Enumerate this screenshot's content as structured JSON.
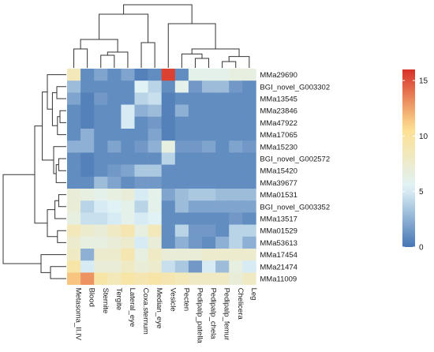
{
  "chart_data": {
    "type": "heatmap",
    "rows": [
      "MMa29690",
      "BGI_novel_G003302",
      "MMa13545",
      "MMa23846",
      "MMa47922",
      "MMa17065",
      "MMa15230",
      "BGI_novel_G002572",
      "MMa15420",
      "MMa39677",
      "MMa01531",
      "BGI_novel_G003352",
      "MMa13517",
      "MMa01529",
      "MMa53613",
      "MMa17454",
      "MMa21474",
      "MMa11009"
    ],
    "columns": [
      "Metasoma_II.IV",
      "Blood",
      "Sternite",
      "Tergite",
      "Lateral_eye",
      "Coxa.sternum",
      "Median_eye",
      "Vesicle",
      "Pecten",
      "Pedipalp_patella",
      "Pedipalp_chela",
      "Pedipalp_femur",
      "Chelicera",
      "Leg"
    ],
    "values": [
      [
        8.5,
        1.0,
        2.0,
        1.0,
        2.0,
        0.5,
        1.0,
        15.5,
        1.0,
        6.0,
        6.0,
        6.0,
        6.5,
        6.5
      ],
      [
        3.0,
        1.0,
        1.0,
        1.0,
        1.0,
        5.5,
        4.0,
        1.0,
        6.0,
        1.5,
        3.0,
        3.0,
        1.5,
        1.0
      ],
      [
        2.0,
        0.5,
        1.5,
        1.0,
        1.0,
        4.0,
        4.5,
        0.5,
        1.0,
        1.0,
        1.0,
        1.0,
        1.0,
        1.0
      ],
      [
        1.0,
        0.5,
        1.0,
        1.0,
        5.0,
        2.5,
        3.0,
        0.5,
        2.5,
        1.0,
        1.0,
        1.0,
        1.0,
        1.0
      ],
      [
        1.0,
        0.5,
        1.0,
        1.0,
        5.0,
        1.0,
        1.5,
        0.5,
        1.0,
        1.0,
        1.0,
        1.0,
        1.0,
        1.0
      ],
      [
        1.0,
        2.5,
        1.0,
        1.0,
        1.0,
        1.0,
        2.0,
        0.5,
        1.0,
        1.0,
        1.0,
        1.0,
        1.0,
        1.0
      ],
      [
        2.5,
        2.5,
        1.0,
        2.0,
        1.0,
        1.5,
        2.5,
        6.5,
        1.5,
        1.5,
        2.0,
        1.0,
        2.0,
        1.5
      ],
      [
        1.0,
        0.5,
        1.0,
        1.0,
        1.0,
        1.0,
        1.0,
        4.0,
        1.0,
        1.0,
        1.0,
        1.0,
        1.0,
        1.0
      ],
      [
        1.0,
        0.5,
        1.0,
        1.5,
        2.0,
        3.5,
        3.5,
        1.0,
        1.0,
        1.0,
        1.0,
        1.0,
        1.0,
        1.0
      ],
      [
        1.0,
        1.0,
        3.0,
        2.0,
        1.0,
        1.5,
        1.5,
        1.0,
        1.0,
        1.0,
        1.0,
        1.0,
        1.0,
        1.0
      ],
      [
        7.0,
        6.5,
        6.0,
        6.5,
        7.0,
        5.0,
        6.0,
        2.0,
        3.0,
        3.5,
        3.5,
        3.0,
        3.0,
        3.0
      ],
      [
        7.0,
        4.0,
        5.0,
        5.5,
        6.0,
        4.0,
        6.0,
        1.0,
        3.0,
        2.0,
        2.0,
        2.0,
        2.0,
        2.0
      ],
      [
        6.5,
        4.5,
        4.5,
        5.0,
        6.0,
        5.0,
        5.5,
        1.0,
        1.0,
        1.0,
        1.0,
        1.0,
        1.5,
        1.0
      ],
      [
        8.5,
        7.5,
        7.0,
        8.0,
        9.0,
        6.5,
        8.5,
        1.0,
        4.0,
        1.5,
        1.5,
        1.0,
        4.0,
        4.0
      ],
      [
        7.5,
        6.5,
        6.5,
        7.0,
        7.5,
        5.0,
        7.0,
        1.0,
        2.5,
        1.5,
        1.0,
        2.5,
        4.0,
        2.5
      ],
      [
        8.0,
        2.5,
        7.5,
        7.5,
        9.0,
        6.5,
        8.0,
        7.0,
        7.0,
        7.0,
        7.5,
        7.5,
        7.5,
        7.5
      ],
      [
        9.5,
        5.0,
        7.0,
        7.0,
        8.0,
        7.0,
        7.5,
        4.5,
        3.5,
        1.5,
        5.0,
        3.0,
        6.5,
        5.0
      ],
      [
        11.5,
        13.0,
        9.5,
        8.5,
        9.5,
        9.0,
        9.5,
        9.0,
        8.5,
        8.0,
        8.0,
        8.0,
        7.0,
        8.0
      ]
    ],
    "colorbar": {
      "min": 0,
      "max": 16,
      "ticks": [
        0,
        5,
        10,
        15
      ]
    },
    "palette": [
      "#4575b4",
      "#e0f3f8",
      "#fee090",
      "#d73027"
    ],
    "row_dendrogram": true,
    "column_dendrogram": true,
    "legend_position": "right",
    "title": "",
    "xlabel": "",
    "ylabel": ""
  }
}
